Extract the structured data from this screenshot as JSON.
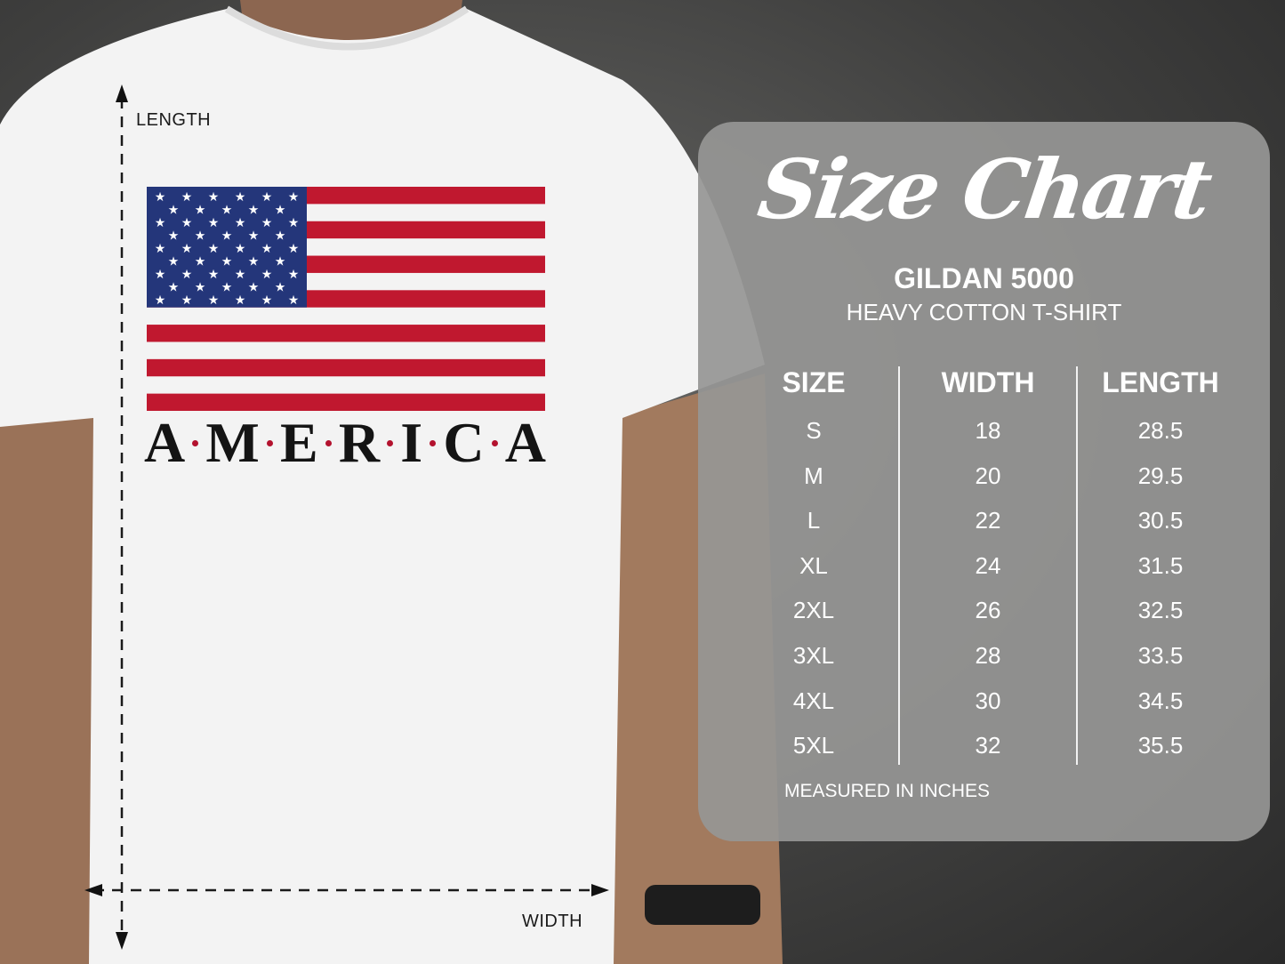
{
  "measure_labels": {
    "length": "LENGTH",
    "width": "WIDTH"
  },
  "shirt_print": {
    "letters": [
      "A",
      "M",
      "E",
      "R",
      "I",
      "C",
      "A"
    ],
    "accent_color": "#b3122e",
    "flag_blue": "#24367a",
    "flag_red": "#c0182f"
  },
  "size_chart": {
    "title": "Size Chart",
    "brand": "GILDAN 5000",
    "product": "HEAVY COTTON T-SHIRT",
    "headers": [
      "SIZE",
      "WIDTH",
      "LENGTH"
    ],
    "rows": [
      [
        "S",
        "18",
        "28.5"
      ],
      [
        "M",
        "20",
        "29.5"
      ],
      [
        "L",
        "22",
        "30.5"
      ],
      [
        "XL",
        "24",
        "31.5"
      ],
      [
        "2XL",
        "26",
        "32.5"
      ],
      [
        "3XL",
        "28",
        "33.5"
      ],
      [
        "4XL",
        "30",
        "34.5"
      ],
      [
        "5XL",
        "32",
        "35.5"
      ]
    ],
    "footnote": "MEASURED IN INCHES"
  }
}
